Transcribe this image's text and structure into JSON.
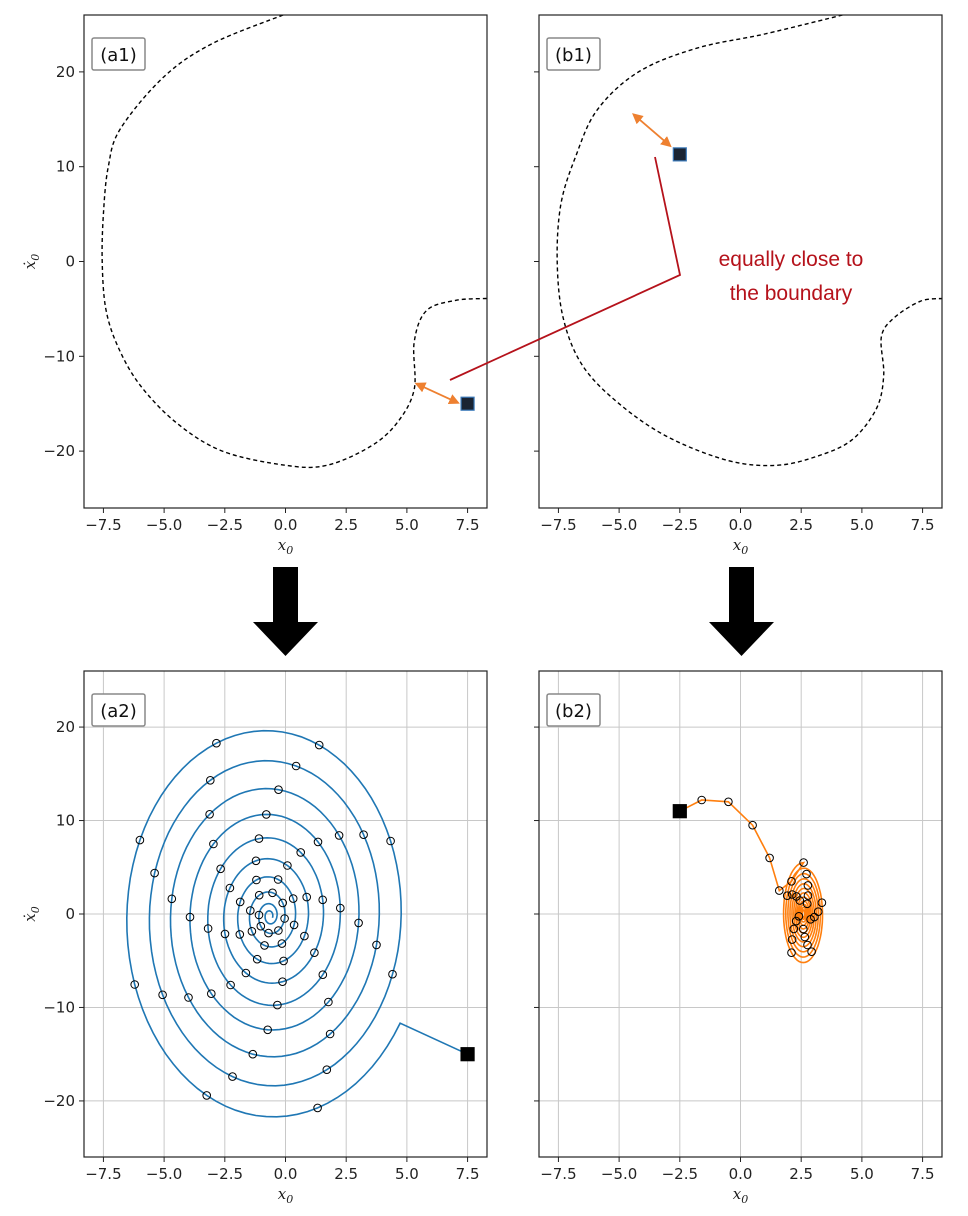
{
  "figure": {
    "annotation_lines": [
      "equally close to",
      "the boundary"
    ],
    "colors": {
      "trajectory_a": "#1f77b4",
      "trajectory_b": "#ff7f0e",
      "boundary": "#000000",
      "annotation": "#b5121b",
      "arrow": "#ee8030",
      "grid": "#c8c8c8"
    },
    "icons": [
      "down-arrow-icon",
      "double-headed-arrow-icon",
      "start-square-marker"
    ]
  },
  "chart_data": [
    {
      "id": "a1",
      "type": "line",
      "panel_label": "(a1)",
      "xlabel": "x0",
      "ylabel": "x0-dot",
      "xlim": [
        -8.3,
        8.3
      ],
      "ylim": [
        -26,
        26
      ],
      "xticks": [
        -7.5,
        -5.0,
        -2.5,
        0.0,
        2.5,
        5.0,
        7.5
      ],
      "yticks": [
        -20,
        -10,
        0,
        10,
        20
      ],
      "grid": false,
      "boundary_segments": [
        [
          [
            -0.1,
            26
          ],
          [
            -3,
            23
          ],
          [
            -5,
            19.5
          ],
          [
            -6.8,
            14
          ],
          [
            -7.3,
            10
          ],
          [
            -7.5,
            5
          ],
          [
            -7.55,
            0
          ],
          [
            -7.4,
            -5
          ],
          [
            -6.9,
            -9
          ],
          [
            -6,
            -13
          ],
          [
            -4.5,
            -17
          ],
          [
            -2.6,
            -20
          ],
          [
            0,
            -21.5
          ],
          [
            1.7,
            -21.5
          ],
          [
            3.5,
            -19.5
          ],
          [
            4.6,
            -17
          ],
          [
            5.3,
            -13.5
          ],
          [
            5.3,
            -8.5
          ],
          [
            5.8,
            -5.2
          ],
          [
            7.0,
            -4.1
          ],
          [
            8.3,
            -3.9
          ]
        ]
      ],
      "start_point": {
        "x": 7.5,
        "y": -15.0
      },
      "arrow": {
        "from": [
          5.4,
          -12.9
        ],
        "to": [
          7.1,
          -14.9
        ]
      }
    },
    {
      "id": "b1",
      "type": "line",
      "panel_label": "(b1)",
      "xlabel": "x0",
      "ylabel": "",
      "xlim": [
        -8.3,
        8.3
      ],
      "ylim": [
        -26,
        26
      ],
      "xticks": [
        -7.5,
        -5.0,
        -2.5,
        0.0,
        2.5,
        5.0,
        7.5
      ],
      "yticks": [
        -20,
        -10,
        0,
        10,
        20
      ],
      "grid": false,
      "boundary_segments": [
        [
          [
            4.2,
            26
          ],
          [
            1,
            24
          ],
          [
            -1.8,
            22.5
          ],
          [
            -4.2,
            20
          ],
          [
            -5.9,
            16
          ],
          [
            -6.8,
            11
          ],
          [
            -7.4,
            6
          ],
          [
            -7.55,
            0
          ],
          [
            -7.3,
            -6
          ],
          [
            -6.5,
            -11
          ],
          [
            -5,
            -15
          ],
          [
            -3,
            -18.5
          ],
          [
            -0.5,
            -21
          ],
          [
            1.5,
            -21.5
          ],
          [
            3.2,
            -20.5
          ],
          [
            4.6,
            -18.8
          ],
          [
            5.6,
            -15.5
          ],
          [
            5.9,
            -12
          ],
          [
            5.8,
            -8
          ],
          [
            6.3,
            -6
          ],
          [
            7.4,
            -4.2
          ],
          [
            8.3,
            -3.9
          ]
        ]
      ],
      "start_point": {
        "x": -2.5,
        "y": 11.3
      },
      "arrow": {
        "from": [
          -4.4,
          15.5
        ],
        "to": [
          -2.9,
          12.2
        ]
      }
    },
    {
      "id": "a2",
      "type": "line",
      "panel_label": "(a2)",
      "xlabel": "x0",
      "ylabel": "x0-dot",
      "xlim": [
        -8.3,
        8.3
      ],
      "ylim": [
        -26,
        26
      ],
      "xticks": [
        -7.5,
        -5.0,
        -2.5,
        0.0,
        2.5,
        5.0,
        7.5
      ],
      "yticks": [
        -20,
        -10,
        0,
        10,
        20
      ],
      "grid": true,
      "series": [
        {
          "color": "#1f77b4",
          "trajectory": {
            "start": [
              7.5,
              -15.0
            ],
            "center": [
              -0.65,
              -0.2
            ],
            "loops": 10,
            "x_range_outer": [
              -7.0,
              5.6
            ],
            "y_range_outer": [
              -24.6,
              19.6
            ]
          }
        }
      ],
      "start_point": {
        "x": 7.5,
        "y": -15.0
      }
    },
    {
      "id": "b2",
      "type": "line",
      "panel_label": "(b2)",
      "xlabel": "x0",
      "ylabel": "",
      "xlim": [
        -8.3,
        8.3
      ],
      "ylim": [
        -26,
        26
      ],
      "xticks": [
        -7.5,
        -5.0,
        -2.5,
        0.0,
        2.5,
        5.0,
        7.5
      ],
      "yticks": [
        -20,
        -10,
        0,
        10,
        20
      ],
      "grid": true,
      "series": [
        {
          "color": "#ff7f0e",
          "trajectory": {
            "start": [
              -2.5,
              11.0
            ],
            "center": [
              2.6,
              0.0
            ],
            "loops": 12,
            "x_range_outer": [
              1.8,
              3.5
            ],
            "y_range_outer": [
              -5.0,
              6.0
            ]
          }
        }
      ],
      "start_point": {
        "x": -2.5,
        "y": 11.0
      }
    }
  ]
}
